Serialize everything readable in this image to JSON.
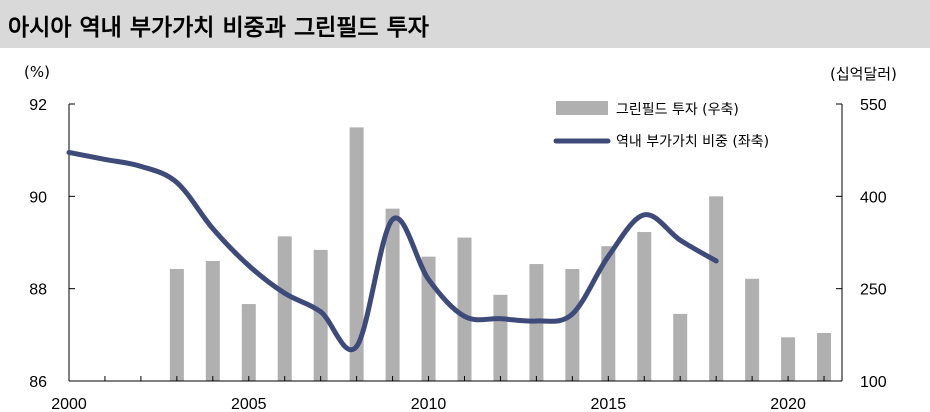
{
  "header": {
    "title": "아시아 역내 부가가치 비중과 그린필드 투자"
  },
  "chart_data": {
    "type": "bar+line",
    "left_unit": "(%)",
    "right_unit": "(십억달러)",
    "left_axis": {
      "ylim": [
        86,
        92
      ],
      "ticks": [
        "86",
        "88",
        "90",
        "92"
      ]
    },
    "right_axis": {
      "ylim": [
        100,
        550
      ],
      "ticks": [
        "100",
        "250",
        "400",
        "550"
      ]
    },
    "x_axis": {
      "xlim": [
        2000,
        2021.5
      ],
      "ticks": [
        "2000",
        "2005",
        "2010",
        "2015",
        "2020"
      ]
    },
    "legend": {
      "placement": "top-right"
    },
    "series": [
      {
        "name": "그린필드 투자 (우축)",
        "type": "bar",
        "axis": "right",
        "color": "#b0b0b0",
        "x": [
          2003,
          2004,
          2005,
          2006,
          2007,
          2008,
          2009,
          2010,
          2011,
          2012,
          2013,
          2014,
          2015,
          2016,
          2017,
          2018,
          2019,
          2020,
          2021
        ],
        "values": [
          282,
          295,
          225,
          335,
          313,
          512,
          380,
          302,
          333,
          240,
          290,
          282,
          319,
          342,
          209,
          400,
          266,
          171,
          178
        ]
      },
      {
        "name": "역내 부가가치 비중 (좌축)",
        "type": "line",
        "axis": "left",
        "color": "#3d4a7a",
        "x": [
          2000,
          2001,
          2002,
          2003,
          2004,
          2005,
          2006,
          2007,
          2008,
          2009,
          2010,
          2011,
          2012,
          2013,
          2014,
          2015,
          2016,
          2017,
          2018
        ],
        "values": [
          90.95,
          90.8,
          90.65,
          90.3,
          89.3,
          88.5,
          87.9,
          87.5,
          86.75,
          89.5,
          88.2,
          87.4,
          87.35,
          87.3,
          87.45,
          88.7,
          89.6,
          89.05,
          88.6
        ]
      }
    ]
  }
}
